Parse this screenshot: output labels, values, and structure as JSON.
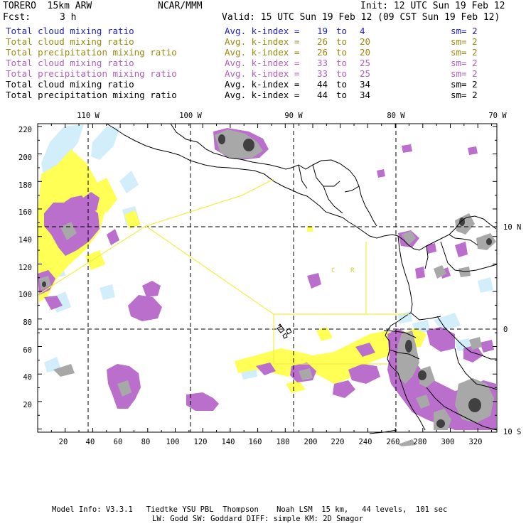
{
  "header": {
    "model": "TORERO  15km ARW",
    "center": "NCAR/MMM",
    "init": "Init: 12 UTC Sun 19 Feb 12",
    "fcst_label": "Fcst:",
    "fcst_value": "3 h",
    "valid": "Valid: 15 UTC Sun 19 Feb 12 (09 CST Sun 19 Feb 12)"
  },
  "legend": [
    {
      "field": "Total cloud mixing ratio",
      "label": "Avg. k-index =",
      "from": "19",
      "to_word": "to",
      "to": "4",
      "sm": "sm= 2",
      "color": "#1f1fc8"
    },
    {
      "field": "Total cloud mixing ratio",
      "label": "Avg. k-index =",
      "from": "26",
      "to_word": "to",
      "to": "20",
      "sm": "sm= 2",
      "color": "#9a8a10"
    },
    {
      "field": "Total precipitation mixing ratio",
      "label": "Avg. k-index =",
      "from": "26",
      "to_word": "to",
      "to": "20",
      "sm": "sm= 2",
      "color": "#9a8a10"
    },
    {
      "field": "Total cloud mixing ratio",
      "label": "Avg. k-index =",
      "from": "33",
      "to_word": "to",
      "to": "25",
      "sm": "sm= 2",
      "color": "#b060c0"
    },
    {
      "field": "Total precipitation mixing ratio",
      "label": "Avg. k-index =",
      "from": "33",
      "to_word": "to",
      "to": "25",
      "sm": "sm= 2",
      "color": "#b060c0"
    },
    {
      "field": "Total cloud mixing ratio",
      "label": "Avg. k-index =",
      "from": "44",
      "to_word": "to",
      "to": "34",
      "sm": "sm= 2",
      "color": "#000000"
    },
    {
      "field": "Total precipitation mixing ratio",
      "label": "Avg. k-index =",
      "from": "44",
      "to_word": "to",
      "to": "34",
      "sm": "sm= 2",
      "color": "#000000"
    }
  ],
  "map": {
    "lon_labels": [
      "110 W",
      "100 W",
      "90 W",
      "80 W",
      "70 W"
    ],
    "lat_labels": [
      "10 N",
      "0",
      "10 S"
    ],
    "x_ticks": [
      "20",
      "40",
      "60",
      "80",
      "100",
      "120",
      "140",
      "160",
      "180",
      "200",
      "220",
      "240",
      "260",
      "280",
      "300",
      "320"
    ],
    "y_ticks": [
      "220",
      "200",
      "180",
      "160",
      "140",
      "120",
      "100",
      "80",
      "60",
      "40",
      "20"
    ],
    "region_labels": [
      "C",
      "R"
    ],
    "colors": {
      "light_blue": "#d2eefa",
      "yellow": "#ffff55",
      "purple": "#bb6fcc",
      "gray": "#a8a8a8",
      "dark": "#404040",
      "boundary_yellow": "#f0f040"
    }
  },
  "footer": {
    "line1": "Model Info: V3.3.1   Tiedtke YSU PBL  Thompson    Noah LSM  15 km,   44 levels,  101 sec",
    "line2": "LW: Godd SW: Goddard DIFF: simple KM: 2D Smagor"
  }
}
